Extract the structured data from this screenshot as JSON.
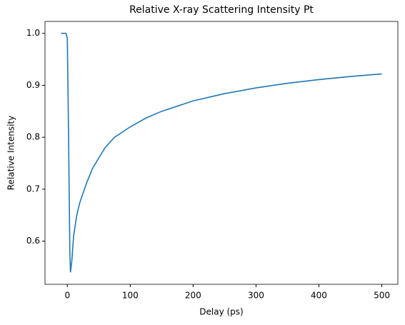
{
  "chart_data": {
    "type": "line",
    "title": "Relative X-ray Scattering Intensity Pt",
    "x_label": "Delay (ps)",
    "y_label": "Relative Intensity",
    "x": [
      -10,
      -2,
      0,
      2,
      4,
      5,
      7,
      10,
      15,
      20,
      30,
      40,
      50,
      60,
      75,
      100,
      125,
      150,
      200,
      250,
      300,
      350,
      400,
      450,
      500
    ],
    "series": [
      {
        "color": "#1f77b4",
        "values": [
          1.0,
          1.0,
          0.99,
          0.8,
          0.58,
          0.54,
          0.56,
          0.61,
          0.65,
          0.675,
          0.71,
          0.74,
          0.76,
          0.78,
          0.8,
          0.82,
          0.837,
          0.85,
          0.87,
          0.884,
          0.895,
          0.904,
          0.911,
          0.917,
          0.922
        ]
      }
    ],
    "xlim": [
      -35.5,
      525.5
    ],
    "xticks": [
      0,
      100,
      200,
      300,
      400,
      500
    ],
    "ylim": [
      0.517,
      1.023
    ],
    "yticks": [
      {
        "value": 0.6,
        "label": "0.6"
      },
      {
        "value": 0.7,
        "label": "0.7"
      },
      {
        "value": 0.8,
        "label": "0.8"
      },
      {
        "value": 0.9,
        "label": "0.9"
      },
      {
        "value": 1.0,
        "label": "1.0"
      }
    ],
    "grid": false
  }
}
